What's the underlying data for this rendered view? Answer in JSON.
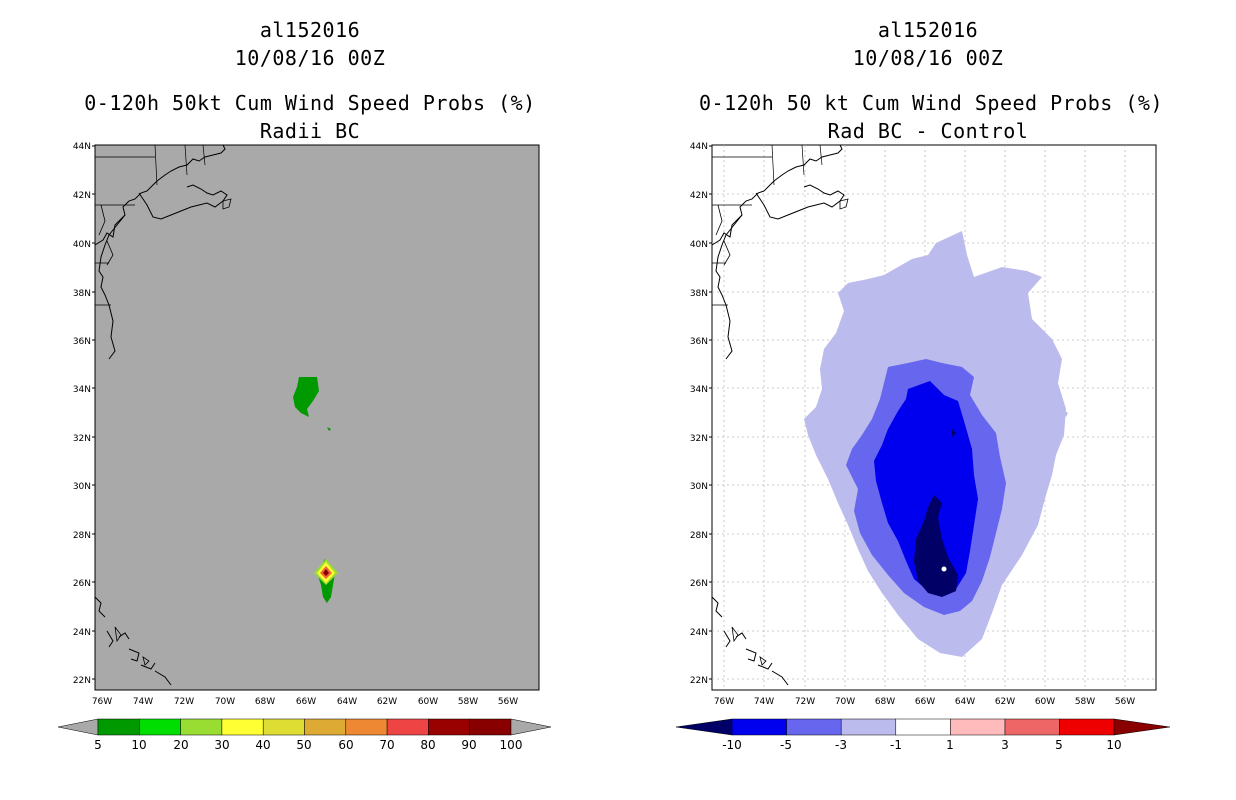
{
  "left_panel": {
    "storm_id": "al152016",
    "datetime": "10/08/16 00Z",
    "title": "0-120h 50kt Cum Wind Speed Probs (%)",
    "subtitle": "Radii BC",
    "lat_labels": [
      "44N",
      "42N",
      "40N",
      "38N",
      "36N",
      "34N",
      "32N",
      "30N",
      "28N",
      "26N",
      "24N",
      "22N"
    ],
    "lon_labels": [
      "76W",
      "74W",
      "72W",
      "70W",
      "68W",
      "66W",
      "64W",
      "62W",
      "60W",
      "58W",
      "56W"
    ],
    "colorbar": {
      "labels": [
        "5",
        "10",
        "20",
        "30",
        "40",
        "50",
        "60",
        "70",
        "80",
        "90",
        "100"
      ],
      "colors": [
        "#009900",
        "#00dd00",
        "#99dd33",
        "#ffff33",
        "#dddd33",
        "#ddaa33",
        "#ee8833",
        "#ee4444",
        "#990000",
        "#880000",
        "#8800cc"
      ]
    }
  },
  "right_panel": {
    "storm_id": "al152016",
    "datetime": "10/08/16 00Z",
    "title": "0-120h 50 kt Cum Wind Speed Probs (%)",
    "subtitle": "Rad BC - Control",
    "lat_labels": [
      "44N",
      "42N",
      "40N",
      "38N",
      "36N",
      "34N",
      "32N",
      "30N",
      "28N",
      "26N",
      "24N",
      "22N"
    ],
    "lon_labels": [
      "76W",
      "74W",
      "72W",
      "70W",
      "68W",
      "66W",
      "64W",
      "62W",
      "60W",
      "58W",
      "56W"
    ],
    "colorbar": {
      "labels": [
        "-10",
        "-5",
        "-3",
        "-1",
        "1",
        "3",
        "5",
        "10"
      ],
      "colors": [
        "#000066",
        "#0000ee",
        "#6666ee",
        "#bbbbee",
        "#ffffff",
        "#ffbbbb",
        "#ee6666",
        "#ee0000",
        "#880000"
      ]
    }
  }
}
